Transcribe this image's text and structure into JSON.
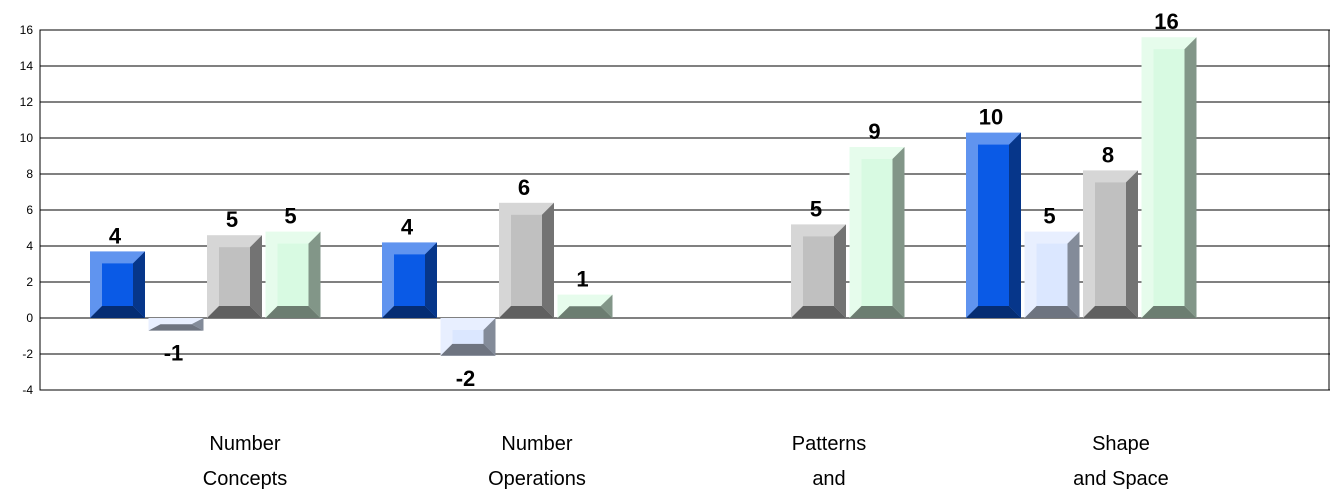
{
  "chart_data": {
    "type": "bar",
    "style": "3d-beveled",
    "categories": [
      [
        "Number",
        "Concepts"
      ],
      [
        "Number",
        "Operations"
      ],
      [
        "Patterns",
        "and"
      ],
      [
        "Shape",
        "and Space"
      ]
    ],
    "series": [
      {
        "values": [
          3.7,
          4.2,
          null,
          10.3
        ],
        "labels": [
          "4",
          "4",
          "",
          "10"
        ],
        "color": "#0a5ae6"
      },
      {
        "values": [
          -0.7,
          -2.1,
          null,
          4.8
        ],
        "labels": [
          "-1",
          "-2",
          "",
          "5"
        ],
        "color": "#dbe7ff"
      },
      {
        "values": [
          4.6,
          6.4,
          5.2,
          8.2
        ],
        "labels": [
          "5",
          "6",
          "5",
          "8"
        ],
        "color": "#c0c0c0"
      },
      {
        "values": [
          4.8,
          1.3,
          9.5,
          15.6
        ],
        "labels": [
          "5",
          "1",
          "9",
          "16"
        ],
        "color": "#d8fae2"
      }
    ],
    "yticks": [
      "16",
      "14",
      "12",
      "10",
      "8",
      "6",
      "4",
      "2",
      "0",
      "-2",
      "-4"
    ],
    "ylim": [
      -4,
      16
    ],
    "grid": true,
    "legend": false
  }
}
